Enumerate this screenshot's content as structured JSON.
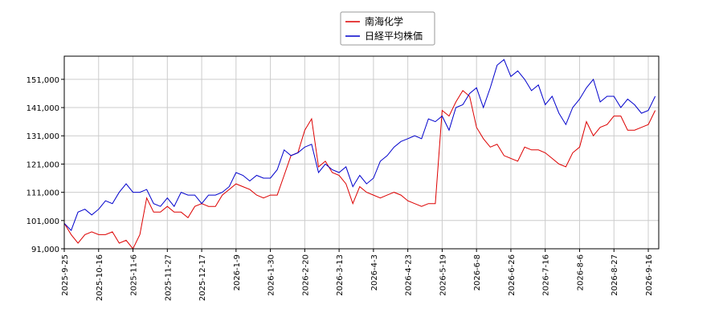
{
  "chart_data": {
    "type": "line",
    "categories": [
      "2025-9-25",
      null,
      null,
      null,
      null,
      "2025-10-16",
      null,
      null,
      null,
      null,
      "2025-11-6",
      null,
      null,
      null,
      null,
      "2025-11-27",
      null,
      null,
      null,
      null,
      "2025-12-17",
      null,
      null,
      null,
      null,
      "2026-1-9",
      null,
      null,
      null,
      null,
      "2026-1-30",
      null,
      null,
      null,
      null,
      "2026-2-20",
      null,
      null,
      null,
      null,
      "2026-3-13",
      null,
      null,
      null,
      null,
      "2026-4-3",
      null,
      null,
      null,
      null,
      "2026-4-23",
      null,
      null,
      null,
      null,
      "2026-5-19",
      null,
      null,
      null,
      null,
      "2026-6-8",
      null,
      null,
      null,
      null,
      "2026-6-26",
      null,
      null,
      null,
      null,
      "2026-7-16",
      null,
      null,
      null,
      null,
      "2026-8-6",
      null,
      null,
      null,
      null,
      "2026-8-27",
      null,
      null,
      null,
      null,
      "2026-9-16",
      null
    ],
    "series": [
      {
        "name": "南海化学",
        "color": "#dd0000",
        "values": [
          100000,
          96000,
          93000,
          96000,
          97000,
          96000,
          96000,
          97000,
          93000,
          94000,
          91000,
          96000,
          109000,
          104000,
          104000,
          106000,
          104000,
          104000,
          102000,
          106000,
          107000,
          106000,
          106000,
          110000,
          112000,
          114000,
          113000,
          112000,
          110000,
          109000,
          110000,
          110000,
          117000,
          124000,
          125000,
          133000,
          137000,
          120000,
          122000,
          118000,
          117000,
          114000,
          107000,
          113000,
          111000,
          110000,
          109000,
          110000,
          111000,
          110000,
          108000,
          107000,
          106000,
          107000,
          107000,
          140000,
          138000,
          143000,
          147000,
          145000,
          134000,
          130000,
          127000,
          128000,
          124000,
          123000,
          122000,
          127000,
          126000,
          126000,
          125000,
          123000,
          121000,
          120000,
          125000,
          127000,
          136000,
          131000,
          134000,
          135000,
          138000,
          138000,
          133000,
          133000,
          134000,
          135000,
          140000
        ]
      },
      {
        "name": "日経平均株価",
        "color": "#0000cc",
        "values": [
          100000,
          97500,
          104000,
          105000,
          103000,
          105000,
          108000,
          107000,
          111000,
          114000,
          111000,
          111000,
          112000,
          107000,
          106000,
          109000,
          106000,
          111000,
          110000,
          110000,
          107000,
          110000,
          110000,
          111000,
          113000,
          118000,
          117000,
          115000,
          117000,
          116000,
          116000,
          119000,
          126000,
          124000,
          125000,
          127000,
          128000,
          118000,
          121000,
          119000,
          118000,
          120000,
          113000,
          117000,
          114000,
          116000,
          122000,
          124000,
          127000,
          129000,
          130000,
          131000,
          130000,
          137000,
          136000,
          138000,
          133000,
          141000,
          142000,
          146000,
          148000,
          141000,
          148000,
          156000,
          158000,
          152000,
          154000,
          151000,
          147000,
          149000,
          142000,
          145000,
          139000,
          135000,
          141000,
          144000,
          148000,
          151000,
          143000,
          145000,
          145000,
          141000,
          144000,
          142000,
          139000,
          140000,
          145000
        ]
      }
    ],
    "ylim": [
      91000,
      159200
    ],
    "yticks": [
      {
        "value": 91000,
        "label": "91,000"
      },
      {
        "value": 101000,
        "label": "101,000"
      },
      {
        "value": 111000,
        "label": "111,000"
      },
      {
        "value": 121000,
        "label": "121,000"
      },
      {
        "value": 131000,
        "label": "131,000"
      },
      {
        "value": 141000,
        "label": "141,000"
      },
      {
        "value": 151000,
        "label": "151,000"
      }
    ],
    "grid": true,
    "legend": "top"
  }
}
